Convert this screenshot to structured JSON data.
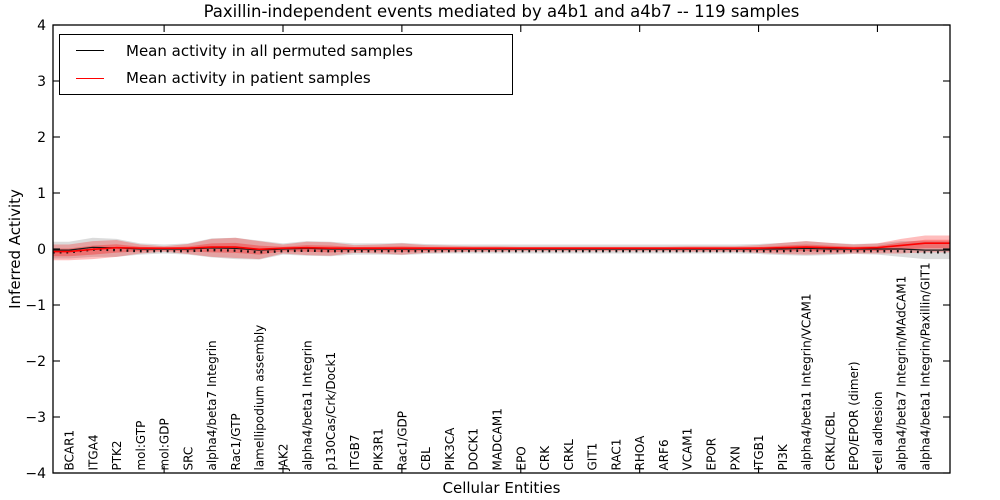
{
  "chart_data": {
    "type": "area",
    "title": "Paxillin-independent events mediated by a4b1 and a4b7 -- 119 samples",
    "xlabel": "Cellular Entities",
    "ylabel": "Inferred Activity",
    "ylim": [
      -4,
      4
    ],
    "ytick_labels": [
      "4",
      "3",
      "2",
      "1",
      "0",
      "−1",
      "−2",
      "−3",
      "−4"
    ],
    "ytick_values": [
      4,
      3,
      2,
      1,
      0,
      -1,
      -2,
      -3,
      -4
    ],
    "xtick_indices": [
      4,
      9,
      14,
      19,
      24,
      29,
      34
    ],
    "grid": false,
    "legend_position": "upper-left",
    "legend": [
      {
        "label": "Mean activity in all permuted samples",
        "color": "#000000"
      },
      {
        "label": "Mean activity in patient samples",
        "color": "#ff0000"
      }
    ],
    "colors": {
      "patient_line": "#ff0000",
      "permuted_line": "#1a1a1a",
      "marker_dots": "#111111",
      "patient_band": "#ff0000",
      "permuted_band": "#000000",
      "axes": "#000000"
    },
    "categories": [
      "BCAR1",
      "ITGA4",
      "PTK2",
      "mol:GTP",
      "mol:GDP",
      "SRC",
      "alpha4/beta7 Integrin",
      "Rac1/GTP",
      "lamellipodium assembly",
      "JAK2",
      "alpha4/beta1 Integrin",
      "p130Cas/Crk/Dock1",
      "ITGB7",
      "PIK3R1",
      "Rac1/GDP",
      "CBL",
      "PIK3CA",
      "DOCK1",
      "MADCAM1",
      "EPO",
      "CRK",
      "CRKL",
      "GIT1",
      "RAC1",
      "RHOA",
      "ARF6",
      "VCAM1",
      "EPOR",
      "PXN",
      "ITGB1",
      "PI3K",
      "alpha4/beta1 Integrin/VCAM1",
      "CRKL/CBL",
      "EPO/EPOR (dimer)",
      "cell adhesion",
      "alpha4/beta7 Integrin/MAdCAM1",
      "alpha4/beta1 Integrin/Paxillin/GIT1"
    ],
    "series": [
      {
        "name": "permuted_mean",
        "values": [
          -0.02,
          0.03,
          0.02,
          0.0,
          0.0,
          0.0,
          0.02,
          0.01,
          -0.02,
          0.0,
          0.01,
          0.0,
          0.0,
          0.0,
          0.0,
          0.0,
          0.0,
          0.0,
          0.0,
          0.0,
          0.0,
          0.0,
          0.0,
          0.0,
          0.0,
          0.0,
          0.0,
          0.0,
          0.0,
          0.0,
          0.0,
          0.01,
          0.0,
          0.0,
          0.0,
          0.0,
          -0.02
        ]
      },
      {
        "name": "permuted_std",
        "values": [
          0.15,
          0.17,
          0.16,
          0.1,
          0.08,
          0.1,
          0.17,
          0.19,
          0.17,
          0.1,
          0.13,
          0.13,
          0.1,
          0.1,
          0.11,
          0.09,
          0.08,
          0.08,
          0.08,
          0.08,
          0.08,
          0.08,
          0.08,
          0.08,
          0.08,
          0.08,
          0.08,
          0.08,
          0.08,
          0.09,
          0.11,
          0.13,
          0.11,
          0.09,
          0.1,
          0.14,
          0.16
        ]
      },
      {
        "name": "patient_mean",
        "values": [
          -0.06,
          -0.02,
          0.01,
          0.0,
          0.0,
          0.0,
          0.02,
          0.02,
          -0.02,
          0.0,
          0.01,
          0.0,
          0.0,
          0.0,
          0.0,
          0.0,
          0.0,
          0.0,
          0.0,
          0.0,
          0.0,
          0.0,
          0.0,
          0.0,
          0.0,
          0.0,
          0.0,
          0.0,
          0.0,
          0.0,
          0.01,
          0.02,
          0.01,
          0.0,
          0.01,
          0.05,
          0.09
        ]
      },
      {
        "name": "patient_std",
        "values": [
          0.14,
          0.16,
          0.15,
          0.08,
          0.05,
          0.09,
          0.16,
          0.18,
          0.16,
          0.08,
          0.12,
          0.12,
          0.07,
          0.08,
          0.1,
          0.07,
          0.06,
          0.05,
          0.05,
          0.04,
          0.04,
          0.04,
          0.04,
          0.04,
          0.04,
          0.04,
          0.05,
          0.05,
          0.05,
          0.07,
          0.1,
          0.12,
          0.1,
          0.08,
          0.09,
          0.13,
          0.15
        ]
      }
    ]
  }
}
